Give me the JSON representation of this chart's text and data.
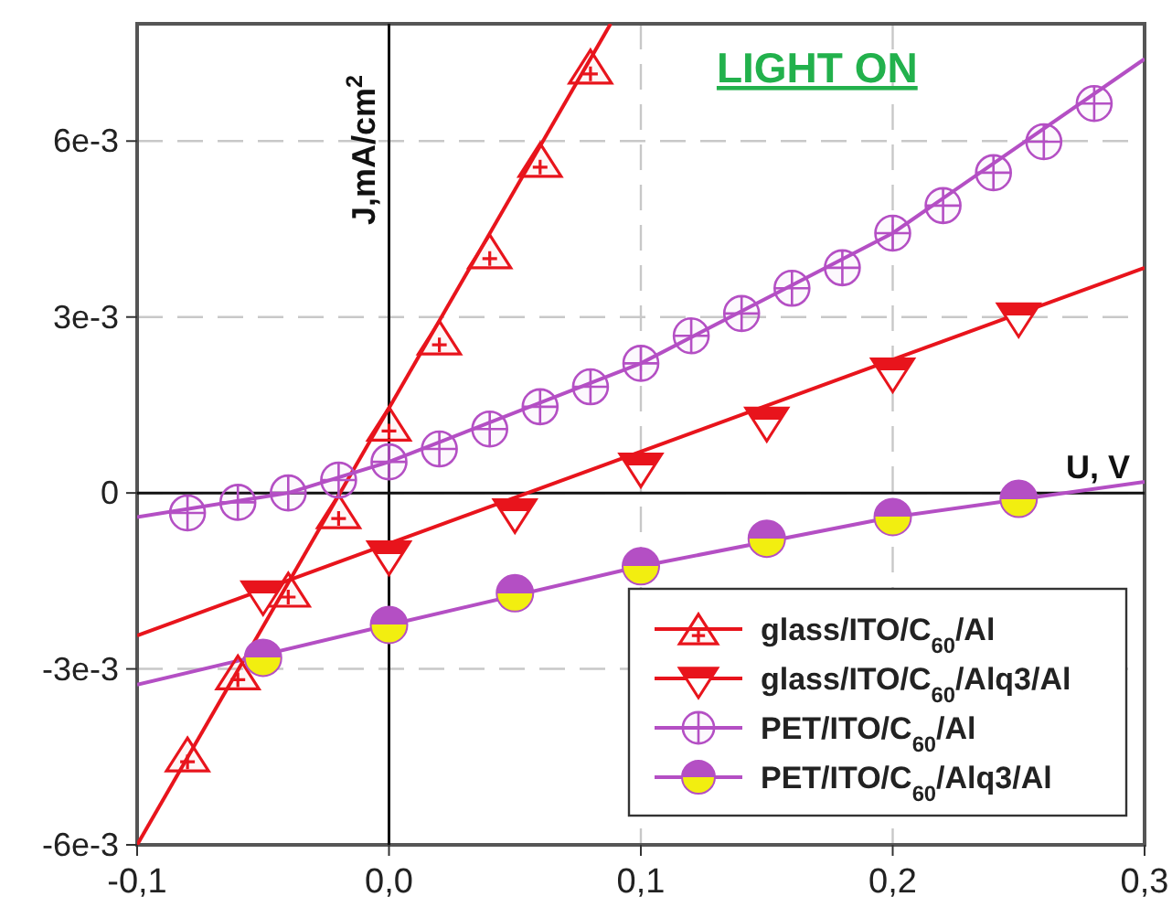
{
  "chart_data": {
    "type": "scatter",
    "title": "LIGHT ON",
    "xlabel": "U, V",
    "ylabel": "J,mA/cm$^{2}$",
    "xlim": [
      -0.1,
      0.3
    ],
    "xticks": [
      {
        "value": -0.1,
        "label": "-0,1"
      },
      {
        "value": 0,
        "label": "0,0"
      },
      {
        "value": 0.1,
        "label": "0,1"
      },
      {
        "value": 0.2,
        "label": "0,2"
      },
      {
        "value": 0.3,
        "label": "0,3"
      }
    ],
    "ylim": [
      -0.006,
      0.008
    ],
    "yticks": [
      {
        "value": -0.006,
        "label": "-6e-3"
      },
      {
        "value": -0.003,
        "label": "-3e-3"
      },
      0,
      {
        "value": 0.003,
        "label": "3e-3"
      },
      {
        "value": 0.006,
        "label": "6e-3"
      }
    ],
    "grid": true,
    "legend": "bottom right",
    "series": [
      {
        "type": "line",
        "color": "#e8141c",
        "x": [
          -0.1,
          0.088
        ],
        "values": [
          -0.006,
          0.008
        ],
        "marker": "none"
      },
      {
        "type": "line",
        "color": "#e8141c",
        "x": [
          -0.1,
          0.3
        ],
        "values": [
          -0.00243,
          0.00384
        ],
        "marker": "none"
      },
      {
        "type": "line",
        "color": "#b44fc4",
        "x": [
          -0.1,
          -0.04,
          0,
          0.1,
          0.2,
          0.3
        ],
        "values": [
          -0.00041,
          0,
          0.00053,
          0.00221,
          0.00443,
          0.0074
        ],
        "marker": "none"
      },
      {
        "type": "line",
        "color": "#b44fc4",
        "x": [
          -0.1,
          0,
          0.1,
          0.2,
          0.3
        ],
        "values": [
          -0.00327,
          -0.00225,
          -0.00125,
          -0.00041,
          0.00019
        ],
        "marker": "none"
      },
      {
        "name": "glass/ITO/C$_{60}$/Al",
        "color": "#e8141c",
        "marker": "triangle",
        "x": [
          -0.08,
          -0.06,
          -0.04,
          -0.02,
          0,
          0.02,
          0.04,
          0.06,
          0.08
        ],
        "values": [
          -0.00446,
          -0.00306,
          -0.00165,
          -0.00031,
          0.00118,
          0.00265,
          0.00412,
          0.00568,
          0.00727
        ]
      },
      {
        "name": "glass/ITO/C$_{60}$/Alq3/Al",
        "color": "#e8141c",
        "marker": "triangle",
        "x": [
          -0.05,
          0,
          0.05,
          0.1,
          0.15,
          0.2,
          0.25
        ],
        "values": [
          -0.00171,
          -0.00103,
          -0.00031,
          0.00047,
          0.00125,
          0.00209,
          0.00303
        ]
      },
      {
        "name": "PET/ITO/C$_{60}$/Al",
        "color": "#b44fc4",
        "marker": "cross",
        "x": [
          -0.08,
          -0.06,
          -0.04,
          -0.02,
          0,
          0.02,
          0.04,
          0.06,
          0.08,
          0.1,
          0.12,
          0.14,
          0.16,
          0.18,
          0.2,
          0.22,
          0.24,
          0.26,
          0.28
        ],
        "values": [
          -0.00034,
          -0.00016,
          0,
          0.00022,
          0.00053,
          0.00075,
          0.00109,
          0.00147,
          0.00181,
          0.00221,
          0.00268,
          0.00306,
          0.00349,
          0.00384,
          0.00443,
          0.0049,
          0.00546,
          0.00599,
          0.00664
        ]
      },
      {
        "name": "PET/ITO/C$_{60}$/Alq3/Al",
        "color": "#b44fc4",
        "marker": "circle",
        "x": [
          -0.05,
          0,
          0.05,
          0.1,
          0.15,
          0.2,
          0.25
        ],
        "values": [
          -0.00281,
          -0.00225,
          -0.00171,
          -0.00125,
          -0.00078,
          -0.00041,
          -0.0001
        ]
      }
    ]
  }
}
